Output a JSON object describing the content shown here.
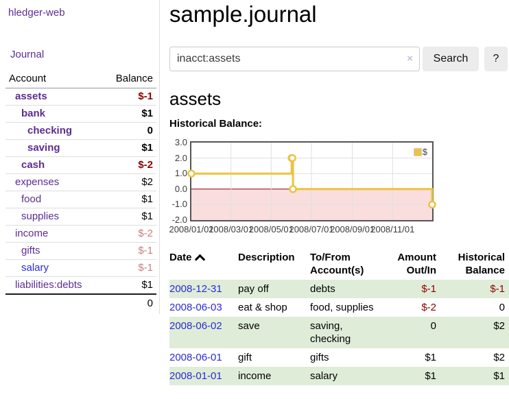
{
  "colors": {
    "link_purple": "#5b2d91",
    "link_blue": "#2a2ad5",
    "negative": "#8b0000",
    "negative_faded": "#c58080",
    "row_stripe_green": "#dfedd8",
    "accent_gold": "#edc240"
  },
  "sidebar": {
    "brand": "hledger-web",
    "journal_link": "Journal",
    "table": {
      "headers": [
        "Account",
        "Balance"
      ],
      "rows": [
        {
          "name": "assets",
          "balance": "$-1",
          "depth": 1,
          "bold": true,
          "balance_style": "neg-strong",
          "link_style": "purple"
        },
        {
          "name": "bank",
          "balance": "$1",
          "depth": 2,
          "bold": true,
          "balance_style": "pos",
          "link_style": "purple"
        },
        {
          "name": "checking",
          "balance": "0",
          "depth": 3,
          "bold": true,
          "balance_style": "pos",
          "link_style": "purple"
        },
        {
          "name": "saving",
          "balance": "$1",
          "depth": 3,
          "bold": true,
          "balance_style": "pos",
          "link_style": "purple"
        },
        {
          "name": "cash",
          "balance": "$-2",
          "depth": 2,
          "bold": true,
          "balance_style": "neg-strong",
          "link_style": "purple"
        },
        {
          "name": "expenses",
          "balance": "$2",
          "depth": 1,
          "bold": false,
          "balance_style": "pos",
          "link_style": "purple"
        },
        {
          "name": "food",
          "balance": "$1",
          "depth": 2,
          "bold": false,
          "balance_style": "pos",
          "link_style": "purple"
        },
        {
          "name": "supplies",
          "balance": "$1",
          "depth": 2,
          "bold": false,
          "balance_style": "pos",
          "link_style": "purple"
        },
        {
          "name": "income",
          "balance": "$-2",
          "depth": 1,
          "bold": false,
          "balance_style": "neg-faded",
          "link_style": "purple"
        },
        {
          "name": "gifts",
          "balance": "$-1",
          "depth": 2,
          "bold": false,
          "balance_style": "neg-faded",
          "link_style": "purple"
        },
        {
          "name": "salary",
          "balance": "$-1",
          "depth": 2,
          "bold": false,
          "balance_style": "neg-faded",
          "link_style": "blue"
        },
        {
          "name": "liabilities:debts",
          "balance": "$1",
          "depth": 1,
          "bold": false,
          "balance_style": "pos",
          "link_style": "purple"
        }
      ],
      "total": "0"
    }
  },
  "main": {
    "title": "sample.journal",
    "search": {
      "value": "inacct:assets",
      "clear_label": "×",
      "button_label": "Search",
      "help_label": "?"
    },
    "account_heading": "assets"
  },
  "chart_data": {
    "type": "line",
    "title": "Historical Balance:",
    "step": true,
    "series": [
      {
        "name": "$",
        "color": "#edc240",
        "points": [
          [
            "2008-01-01",
            1
          ],
          [
            "2008-06-01",
            2
          ],
          [
            "2008-06-02",
            2
          ],
          [
            "2008-06-03",
            0
          ],
          [
            "2008-12-31",
            -1
          ]
        ]
      }
    ],
    "xlim": [
      "2008-01-01",
      "2008-12-31"
    ],
    "ylim": [
      -2,
      3
    ],
    "x_ticks": [
      "2008/01/01",
      "2008/03/01",
      "2008/05/01",
      "2008/07/01",
      "2008/09/01",
      "2008/11/01"
    ],
    "y_ticks": [
      3,
      2,
      1,
      0,
      -1,
      -2
    ],
    "grid": true,
    "legend": {
      "label": "$",
      "position": "top-right"
    },
    "negative_region_color": "#fadddd",
    "zero_line_color": "#8b0000",
    "grid_color": "#e0e0e0",
    "marker": {
      "fill": "#ffffff",
      "radius": 4.5
    }
  },
  "register": {
    "headers": {
      "date": "Date",
      "description": "Description",
      "account": "To/From Account(s)",
      "amount": "Amount Out/In",
      "balance": "Historical Balance"
    },
    "rows": [
      {
        "date": "2008-12-31",
        "description": "pay off",
        "accounts": "debts",
        "amount": "$-1",
        "amount_neg": true,
        "balance": "$-1",
        "balance_neg": true
      },
      {
        "date": "2008-06-03",
        "description": "eat & shop",
        "accounts": "food, supplies",
        "amount": "$-2",
        "amount_neg": true,
        "balance": "0",
        "balance_neg": false
      },
      {
        "date": "2008-06-02",
        "description": "save",
        "accounts": "saving, checking",
        "amount": "0",
        "amount_neg": false,
        "balance": "$2",
        "balance_neg": false
      },
      {
        "date": "2008-06-01",
        "description": "gift",
        "accounts": "gifts",
        "amount": "$1",
        "amount_neg": false,
        "balance": "$2",
        "balance_neg": false
      },
      {
        "date": "2008-01-01",
        "description": "income",
        "accounts": "salary",
        "amount": "$1",
        "amount_neg": false,
        "balance": "$1",
        "balance_neg": false
      }
    ]
  }
}
